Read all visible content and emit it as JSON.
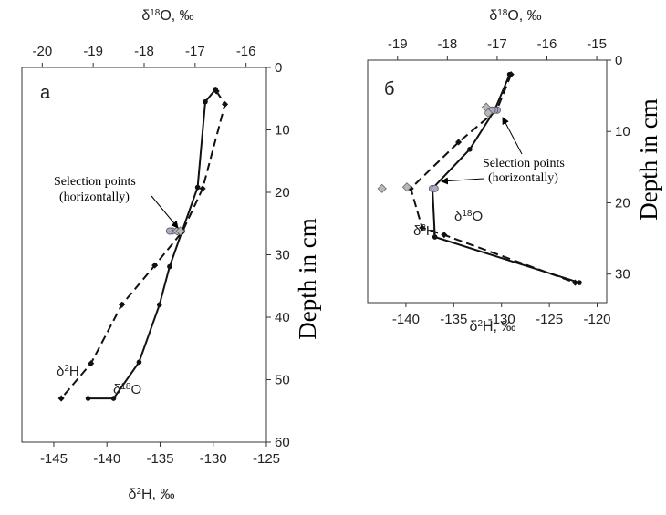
{
  "chart_data": [
    {
      "type": "line",
      "panel_label": "а",
      "top_axis": {
        "label": "δ18O, ‰",
        "range": [
          -20.4,
          -15.6
        ],
        "ticks": [
          -20,
          -19,
          -18,
          -17,
          -16
        ],
        "tick_labels": [
          "-20",
          "-19",
          "-18",
          "-17",
          "-16"
        ]
      },
      "bottom_axis": {
        "label": "δ2H, ‰",
        "range": [
          -148,
          -125
        ],
        "ticks": [
          -145,
          -140,
          -135,
          -130,
          -125
        ],
        "tick_labels": [
          "-145",
          "-140",
          "-135",
          "-130",
          "-125"
        ]
      },
      "y_axis": {
        "label": "Depth in cm",
        "range": [
          0,
          60
        ],
        "inverted": true,
        "ticks": [
          0,
          10,
          20,
          30,
          40,
          50,
          60
        ],
        "tick_labels": [
          "0",
          "10",
          "20",
          "30",
          "40",
          "50",
          "60"
        ]
      },
      "grid": false,
      "series": [
        {
          "name": "δ18O",
          "label_text": "δ18O",
          "x_axis": "top",
          "line_style": "solid",
          "color": "#111111",
          "x": [
            -16.6,
            -16.8,
            -16.95,
            -17.25,
            -17.5,
            -17.7,
            -18.1,
            -18.6,
            -19.1
          ],
          "y": [
            3.5,
            5.5,
            19.2,
            26.1,
            31.9,
            38.0,
            47.2,
            53.0,
            53.0
          ]
        },
        {
          "name": "δ2H",
          "label_text": "δ2H",
          "x_axis": "bottom",
          "line_style": "dashed",
          "color": "#111111",
          "x": [
            -129.7,
            -128.9,
            -131.0,
            -132.9,
            -135.5,
            -138.6,
            -141.5,
            -144.3
          ],
          "y": [
            3.8,
            5.9,
            19.4,
            26.3,
            31.7,
            38.0,
            47.4,
            53.0
          ]
        }
      ],
      "selection_points": [
        {
          "x_axis": "top",
          "x": [
            -17.35,
            -17.45,
            -17.5
          ],
          "y": [
            26.2,
            26.2,
            26.2
          ],
          "color": "#a9a9c9"
        },
        {
          "x_axis": "bottom",
          "x": [
            -133.4,
            -133.1
          ],
          "y": [
            26.2,
            26.2
          ],
          "color": "#b9b9b9"
        }
      ],
      "annotation": {
        "lines": [
          "Selection points",
          "(horizontally)"
        ]
      }
    },
    {
      "type": "line",
      "panel_label": "б",
      "top_axis": {
        "label": "δ18O, ‰",
        "range": [
          -19.6,
          -14.8
        ],
        "ticks": [
          -19,
          -18,
          -17,
          -16,
          -15
        ],
        "tick_labels": [
          "-19",
          "-18",
          "-17",
          "-16",
          "-15"
        ]
      },
      "bottom_axis": {
        "label": "δ2H, ‰",
        "range": [
          -144,
          -119
        ],
        "ticks": [
          -140,
          -135,
          -130,
          -125,
          -120
        ],
        "tick_labels": [
          "-140",
          "-135",
          "-130",
          "-125",
          "-120"
        ]
      },
      "y_axis": {
        "label": "Depth in cm",
        "range": [
          0,
          34
        ],
        "inverted": true,
        "ticks": [
          0,
          10,
          20,
          30
        ],
        "tick_labels": [
          "0",
          "10",
          "20",
          "30"
        ]
      },
      "grid": false,
      "series": [
        {
          "name": "δ18O",
          "label_text": "δ18O",
          "x_axis": "top",
          "line_style": "solid",
          "color": "#111111",
          "x": [
            -16.75,
            -17.05,
            -17.55,
            -18.3,
            -18.25,
            -15.35
          ],
          "y": [
            2.0,
            7.0,
            12.5,
            18.0,
            24.8,
            31.2
          ]
        },
        {
          "name": "δ2H",
          "label_text": "δ2H",
          "x_axis": "bottom",
          "line_style": "dashed",
          "color": "#111111",
          "x": [
            -129.0,
            -130.5,
            -134.5,
            -139.5,
            -138.3,
            -136.0,
            -122.3
          ],
          "y": [
            2.0,
            7.0,
            11.5,
            18.0,
            23.5,
            24.5,
            31.2
          ]
        }
      ],
      "selection_points": [
        {
          "x_axis": "top",
          "x": [
            -17.0,
            -17.05,
            -17.1,
            -18.3,
            -18.25
          ],
          "y": [
            7.0,
            7.0,
            7.0,
            18.0,
            18.0
          ],
          "color": "#a9a9c9"
        },
        {
          "x_axis": "bottom",
          "x": [
            -131.6,
            -131.4,
            -139.9,
            -142.5
          ],
          "y": [
            6.6,
            7.4,
            17.8,
            18.0
          ],
          "color": "#b9b9b9"
        }
      ],
      "annotation": {
        "lines": [
          "Selection points",
          "(horizontally)"
        ]
      }
    }
  ],
  "figure_text": {
    "depth_title": "Depth in cm"
  }
}
